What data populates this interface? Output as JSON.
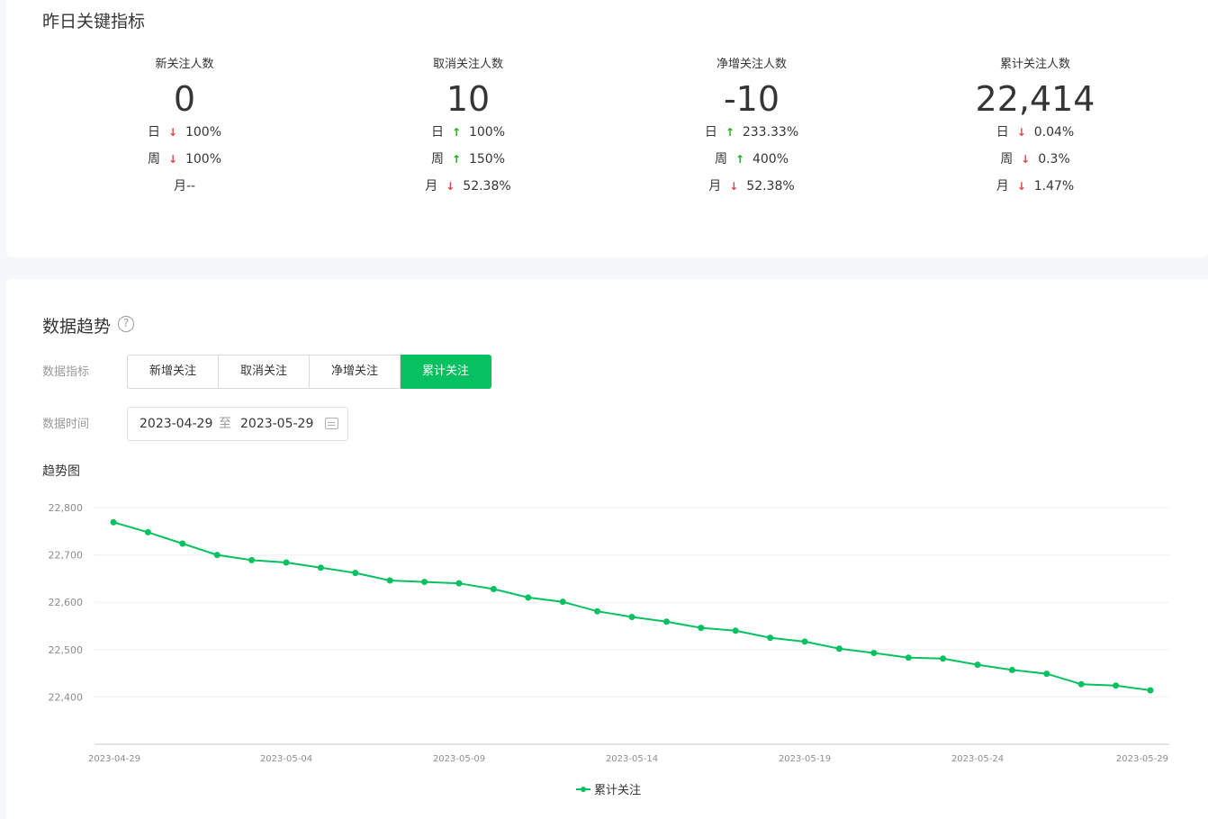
{
  "key_metrics": {
    "title": "昨日关键指标",
    "items": [
      {
        "label": "新关注人数",
        "value": "0",
        "rows": [
          {
            "period": "日",
            "dir": "down",
            "pct": "100%"
          },
          {
            "period": "周",
            "dir": "down",
            "pct": "100%"
          },
          {
            "period": "月",
            "dir": "none",
            "pct": "--"
          }
        ]
      },
      {
        "label": "取消关注人数",
        "value": "10",
        "rows": [
          {
            "period": "日",
            "dir": "up",
            "pct": "100%"
          },
          {
            "period": "周",
            "dir": "up",
            "pct": "150%"
          },
          {
            "period": "月",
            "dir": "down",
            "pct": "52.38%"
          }
        ]
      },
      {
        "label": "净增关注人数",
        "value": "-10",
        "rows": [
          {
            "period": "日",
            "dir": "up",
            "pct": "233.33%"
          },
          {
            "period": "周",
            "dir": "up",
            "pct": "400%"
          },
          {
            "period": "月",
            "dir": "down",
            "pct": "52.38%"
          }
        ]
      },
      {
        "label": "累计关注人数",
        "value": "22,414",
        "rows": [
          {
            "period": "日",
            "dir": "down",
            "pct": "0.04%"
          },
          {
            "period": "周",
            "dir": "down",
            "pct": "0.3%"
          },
          {
            "period": "月",
            "dir": "down",
            "pct": "1.47%"
          }
        ]
      }
    ]
  },
  "trend": {
    "title": "数据趋势",
    "help_icon": "help-circle-icon",
    "metric_label": "数据指标",
    "tabs": [
      "新增关注",
      "取消关注",
      "净增关注",
      "累计关注"
    ],
    "active_tab": "累计关注",
    "date_label": "数据时间",
    "date_start": "2023-04-29",
    "date_sep": "至",
    "date_end": "2023-05-29",
    "calendar_icon": "calendar-icon",
    "chart_title": "趋势图",
    "legend_label": "累计关注"
  },
  "colors": {
    "accent": "#07c160",
    "up": "#1aad19",
    "down": "#e64340"
  },
  "chart_data": {
    "type": "line",
    "x_tick_labels": [
      "2023-04-29",
      "2023-05-04",
      "2023-05-09",
      "2023-05-14",
      "2023-05-19",
      "2023-05-24",
      "2023-05-29"
    ],
    "y_tick_labels": [
      "22,400",
      "22,500",
      "22,600",
      "22,700",
      "22,800"
    ],
    "ylim": [
      22300,
      22800
    ],
    "grid": true,
    "legend_position": "bottom-center",
    "series": [
      {
        "name": "累计关注",
        "x": [
          "2023-04-29",
          "2023-04-30",
          "2023-05-01",
          "2023-05-02",
          "2023-05-03",
          "2023-05-04",
          "2023-05-05",
          "2023-05-06",
          "2023-05-07",
          "2023-05-08",
          "2023-05-09",
          "2023-05-10",
          "2023-05-11",
          "2023-05-12",
          "2023-05-13",
          "2023-05-14",
          "2023-05-15",
          "2023-05-16",
          "2023-05-17",
          "2023-05-18",
          "2023-05-19",
          "2023-05-20",
          "2023-05-21",
          "2023-05-22",
          "2023-05-23",
          "2023-05-24",
          "2023-05-25",
          "2023-05-26",
          "2023-05-27",
          "2023-05-28",
          "2023-05-29"
        ],
        "values": [
          22769,
          22748,
          22724,
          22700,
          22689,
          22684,
          22673,
          22662,
          22646,
          22643,
          22640,
          22628,
          22610,
          22601,
          22581,
          22569,
          22559,
          22546,
          22540,
          22525,
          22517,
          22502,
          22493,
          22483,
          22481,
          22468,
          22457,
          22449,
          22427,
          22424,
          22414
        ]
      }
    ]
  }
}
